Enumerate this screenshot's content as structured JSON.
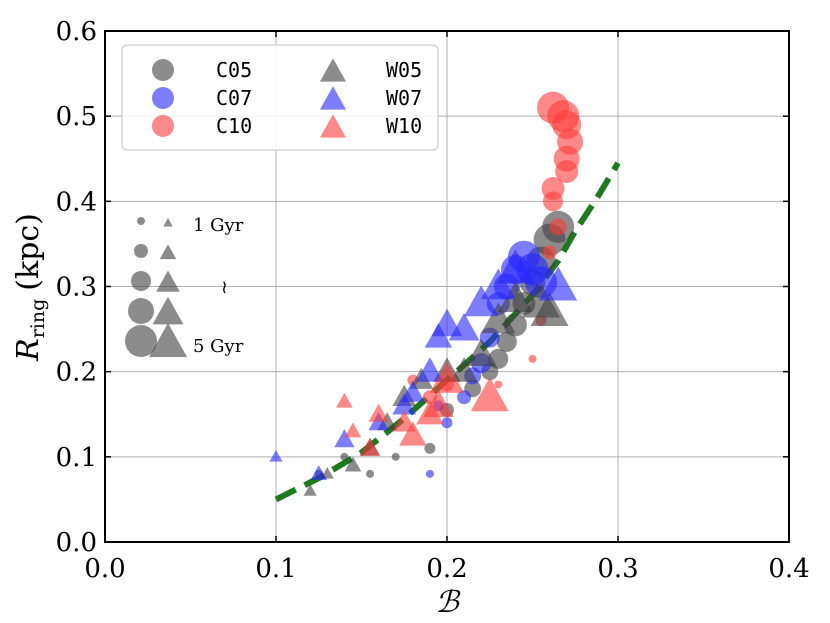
{
  "chart_data": {
    "type": "scatter",
    "xlabel": "ℬ",
    "ylabel_main": "R",
    "ylabel_sub": "ring",
    "ylabel_unit": "(kpc)",
    "xlim": [
      0.0,
      0.4
    ],
    "ylim": [
      0.0,
      0.6
    ],
    "xticks": [
      "0.0",
      "0.1",
      "0.2",
      "0.3",
      "0.4"
    ],
    "yticks": [
      "0.0",
      "0.1",
      "0.2",
      "0.3",
      "0.4",
      "0.5",
      "0.6"
    ],
    "grid": true,
    "legend_position": "top-left",
    "colors": {
      "C05": "#3f3f3f",
      "C07": "#2626ff",
      "C10": "#ff3b3b",
      "W05": "#3f3f3f",
      "W07": "#2626ff",
      "W10": "#ff3b3b",
      "fit": "#1f7a1f"
    },
    "series": [
      {
        "name": "C05",
        "marker": "circle",
        "color": "#3f3f3f",
        "points": [
          [
            0.125,
            0.08
          ],
          [
            0.14,
            0.1
          ],
          [
            0.155,
            0.08
          ],
          [
            0.17,
            0.1
          ],
          [
            0.19,
            0.11
          ],
          [
            0.2,
            0.155
          ],
          [
            0.215,
            0.18
          ],
          [
            0.225,
            0.2
          ],
          [
            0.23,
            0.215
          ],
          [
            0.235,
            0.235
          ],
          [
            0.24,
            0.255
          ],
          [
            0.245,
            0.28
          ],
          [
            0.25,
            0.305
          ],
          [
            0.255,
            0.33
          ],
          [
            0.26,
            0.355
          ],
          [
            0.265,
            0.37
          ]
        ],
        "ages_gyr": [
          1,
          1,
          1,
          1,
          1.5,
          2,
          2.5,
          2.5,
          3,
          3,
          3.5,
          3.5,
          4,
          4.5,
          5,
          5
        ]
      },
      {
        "name": "C07",
        "marker": "circle",
        "color": "#2626ff",
        "points": [
          [
            0.19,
            0.08
          ],
          [
            0.195,
            0.16
          ],
          [
            0.2,
            0.14
          ],
          [
            0.21,
            0.17
          ],
          [
            0.215,
            0.195
          ],
          [
            0.22,
            0.21
          ],
          [
            0.225,
            0.24
          ],
          [
            0.23,
            0.28
          ],
          [
            0.235,
            0.3
          ],
          [
            0.24,
            0.32
          ],
          [
            0.245,
            0.335
          ],
          [
            0.25,
            0.32
          ],
          [
            0.255,
            0.305
          ]
        ],
        "ages_gyr": [
          1,
          1.5,
          1.5,
          2,
          2.5,
          3,
          3,
          3.5,
          4,
          4.5,
          5,
          5,
          5
        ]
      },
      {
        "name": "C10",
        "marker": "circle",
        "color": "#ff3b3b",
        "points": [
          [
            0.18,
            0.19
          ],
          [
            0.19,
            0.17
          ],
          [
            0.2,
            0.185
          ],
          [
            0.23,
            0.185
          ],
          [
            0.25,
            0.215
          ],
          [
            0.255,
            0.26
          ],
          [
            0.26,
            0.34
          ],
          [
            0.265,
            0.37
          ],
          [
            0.262,
            0.4
          ],
          [
            0.262,
            0.415
          ],
          [
            0.27,
            0.435
          ],
          [
            0.27,
            0.45
          ],
          [
            0.272,
            0.47
          ],
          [
            0.27,
            0.49
          ],
          [
            0.268,
            0.5
          ],
          [
            0.262,
            0.51
          ]
        ],
        "ages_gyr": [
          1.5,
          2,
          2,
          1,
          1,
          1.5,
          2,
          2.5,
          3,
          3.5,
          3.5,
          4,
          4,
          4.5,
          5,
          5
        ]
      },
      {
        "name": "W05",
        "marker": "triangle",
        "color": "#3f3f3f",
        "points": [
          [
            0.12,
            0.06
          ],
          [
            0.13,
            0.08
          ],
          [
            0.145,
            0.09
          ],
          [
            0.155,
            0.11
          ],
          [
            0.165,
            0.14
          ],
          [
            0.175,
            0.17
          ],
          [
            0.185,
            0.19
          ],
          [
            0.2,
            0.2
          ],
          [
            0.21,
            0.2
          ],
          [
            0.22,
            0.22
          ],
          [
            0.23,
            0.26
          ],
          [
            0.24,
            0.285
          ],
          [
            0.255,
            0.28
          ],
          [
            0.26,
            0.27
          ]
        ],
        "ages_gyr": [
          1.5,
          1.5,
          2,
          2.5,
          2.5,
          3,
          3,
          3.5,
          3.5,
          4,
          4.5,
          4.5,
          5,
          5
        ]
      },
      {
        "name": "W07",
        "marker": "triangle",
        "color": "#2626ff",
        "points": [
          [
            0.1,
            0.1
          ],
          [
            0.125,
            0.08
          ],
          [
            0.14,
            0.12
          ],
          [
            0.16,
            0.14
          ],
          [
            0.175,
            0.16
          ],
          [
            0.18,
            0.175
          ],
          [
            0.19,
            0.2
          ],
          [
            0.195,
            0.24
          ],
          [
            0.2,
            0.255
          ],
          [
            0.21,
            0.25
          ],
          [
            0.22,
            0.28
          ],
          [
            0.23,
            0.3
          ],
          [
            0.24,
            0.32
          ],
          [
            0.265,
            0.3
          ]
        ],
        "ages_gyr": [
          1.5,
          2,
          2.5,
          2.5,
          3,
          3,
          3.5,
          3.5,
          4,
          4,
          4.5,
          4.5,
          5,
          5
        ]
      },
      {
        "name": "W10",
        "marker": "triangle",
        "color": "#ff3b3b",
        "points": [
          [
            0.14,
            0.165
          ],
          [
            0.145,
            0.13
          ],
          [
            0.155,
            0.11
          ],
          [
            0.16,
            0.15
          ],
          [
            0.175,
            0.14
          ],
          [
            0.18,
            0.125
          ],
          [
            0.19,
            0.15
          ],
          [
            0.195,
            0.16
          ],
          [
            0.2,
            0.19
          ],
          [
            0.225,
            0.17
          ]
        ],
        "ages_gyr": [
          2,
          2,
          2.5,
          2.5,
          3,
          3.5,
          3.5,
          4,
          4.5,
          5
        ]
      }
    ],
    "fit_line": {
      "style": "dashed",
      "color": "#1f7a1f",
      "points": [
        [
          0.1,
          0.05
        ],
        [
          0.125,
          0.075
        ],
        [
          0.15,
          0.105
        ],
        [
          0.175,
          0.145
        ],
        [
          0.2,
          0.19
        ],
        [
          0.225,
          0.235
        ],
        [
          0.25,
          0.29
        ],
        [
          0.265,
          0.33
        ],
        [
          0.275,
          0.365
        ],
        [
          0.288,
          0.405
        ],
        [
          0.3,
          0.445
        ]
      ]
    },
    "legend": {
      "entries": [
        {
          "label": "C05",
          "marker": "circle",
          "color": "#3f3f3f"
        },
        {
          "label": "C07",
          "marker": "circle",
          "color": "#2626ff"
        },
        {
          "label": "C10",
          "marker": "circle",
          "color": "#ff3b3b"
        },
        {
          "label": "W05",
          "marker": "triangle",
          "color": "#3f3f3f"
        },
        {
          "label": "W07",
          "marker": "triangle",
          "color": "#2626ff"
        },
        {
          "label": "W10",
          "marker": "triangle",
          "color": "#ff3b3b"
        }
      ]
    },
    "size_legend": {
      "ages_gyr": [
        1,
        2,
        3,
        4,
        5
      ],
      "label_min": "1 Gyr",
      "label_range": "≀",
      "label_max": "5 Gyr"
    }
  }
}
